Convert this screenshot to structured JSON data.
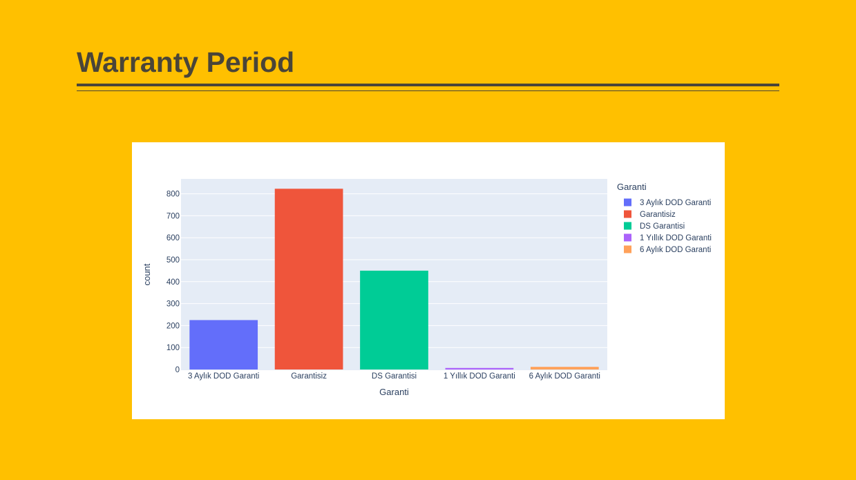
{
  "slide": {
    "title": "Warranty Period"
  },
  "colors": {
    "background": "#FFC000",
    "title": "#4a4538",
    "plot_bg": "#E5ECF6"
  },
  "chart_data": {
    "type": "bar",
    "categories": [
      "3 Aylık DOD Garanti",
      "Garantisiz",
      "DS Garantisi",
      "1 Yıllık DOD Garanti",
      "6 Aylık DOD Garanti"
    ],
    "values": [
      225,
      823,
      450,
      7,
      12
    ],
    "series_colors": [
      "#636EFA",
      "#EF553B",
      "#00CC96",
      "#AB63FA",
      "#FFA15A"
    ],
    "xlabel": "Garanti",
    "ylabel": "count",
    "ylim": [
      0,
      870
    ],
    "yticks": [
      0,
      100,
      200,
      300,
      400,
      500,
      600,
      700,
      800
    ],
    "grid": true,
    "legend": {
      "title": "Garanti",
      "placement": "right",
      "entries": [
        "3 Aylık DOD Garanti",
        "Garantisiz",
        "DS Garantisi",
        "1 Yıllık DOD Garanti",
        "6 Aylık DOD Garanti"
      ]
    }
  }
}
